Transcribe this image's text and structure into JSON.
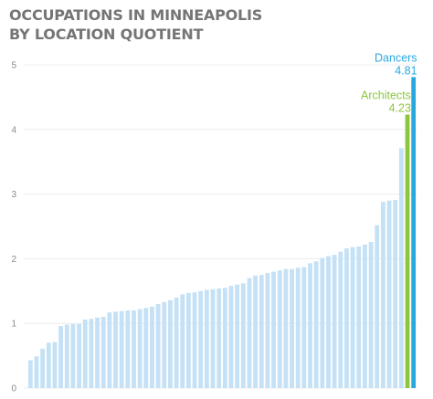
{
  "title_lines": [
    "OCCUPATIONS IN MINNEAPOLIS",
    "BY LOCATION QUOTIENT"
  ],
  "colors": {
    "bar": "#c4e1f5",
    "dancers": "#29a8e0",
    "architects": "#8cc63f",
    "grid": "#ececec",
    "title": "#757575",
    "tick": "#8a8a8a"
  },
  "chart_data": {
    "type": "bar",
    "title": "OCCUPATIONS IN MINNEAPOLIS BY LOCATION QUOTIENT",
    "ylim": [
      0,
      5
    ],
    "yticks": [
      0,
      1,
      2,
      3,
      4,
      5
    ],
    "grid": true,
    "values": [
      0.43,
      0.49,
      0.61,
      0.7,
      0.71,
      0.96,
      0.98,
      0.99,
      0.99,
      1.06,
      1.07,
      1.09,
      1.1,
      1.17,
      1.18,
      1.19,
      1.2,
      1.2,
      1.22,
      1.24,
      1.26,
      1.3,
      1.33,
      1.36,
      1.4,
      1.45,
      1.47,
      1.48,
      1.5,
      1.52,
      1.53,
      1.54,
      1.55,
      1.58,
      1.6,
      1.62,
      1.7,
      1.74,
      1.75,
      1.78,
      1.8,
      1.82,
      1.84,
      1.84,
      1.86,
      1.87,
      1.93,
      1.96,
      2.01,
      2.04,
      2.06,
      2.11,
      2.16,
      2.18,
      2.19,
      2.22,
      2.26,
      2.52,
      2.88,
      2.9,
      2.91,
      3.71,
      4.23,
      4.81
    ],
    "highlights": [
      {
        "name": "Architects",
        "value": 4.23,
        "label": "4.23",
        "index": 62
      },
      {
        "name": "Dancers",
        "value": 4.81,
        "label": "4.81",
        "index": 63
      }
    ]
  }
}
